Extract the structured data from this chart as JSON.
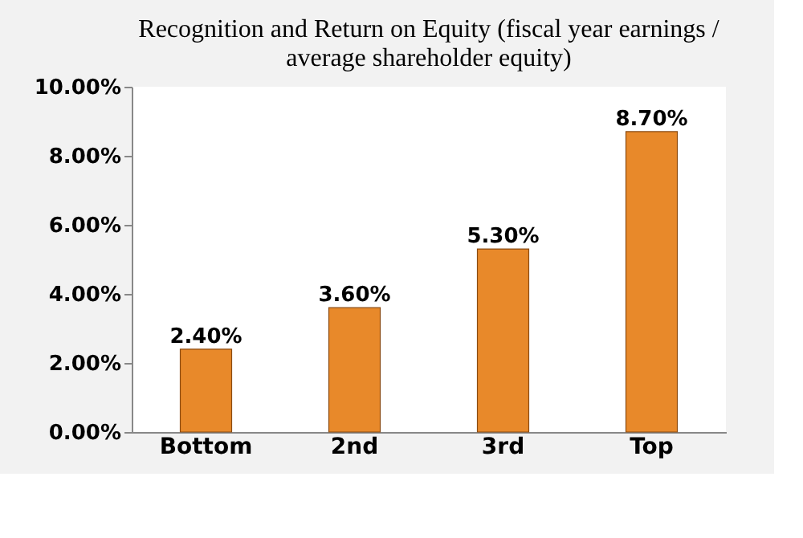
{
  "chart_data": {
    "type": "bar",
    "title": "Recognition and Return on Equity (fiscal year earnings / average shareholder equity)",
    "categories": [
      "Bottom",
      "2nd",
      "3rd",
      "Top"
    ],
    "values": [
      2.4,
      3.6,
      5.3,
      8.7
    ],
    "value_labels": [
      "2.40%",
      "3.60%",
      "5.30%",
      "8.70%"
    ],
    "color": "#e8892a",
    "ylim": [
      0,
      10
    ],
    "yticks": [
      {
        "value": 0,
        "label": "0.00%"
      },
      {
        "value": 2,
        "label": "2.00%"
      },
      {
        "value": 4,
        "label": "4.00%"
      },
      {
        "value": 6,
        "label": "6.00%"
      },
      {
        "value": 8,
        "label": "8.00%"
      },
      {
        "value": 10,
        "label": "10.00%"
      }
    ],
    "grid": false
  }
}
